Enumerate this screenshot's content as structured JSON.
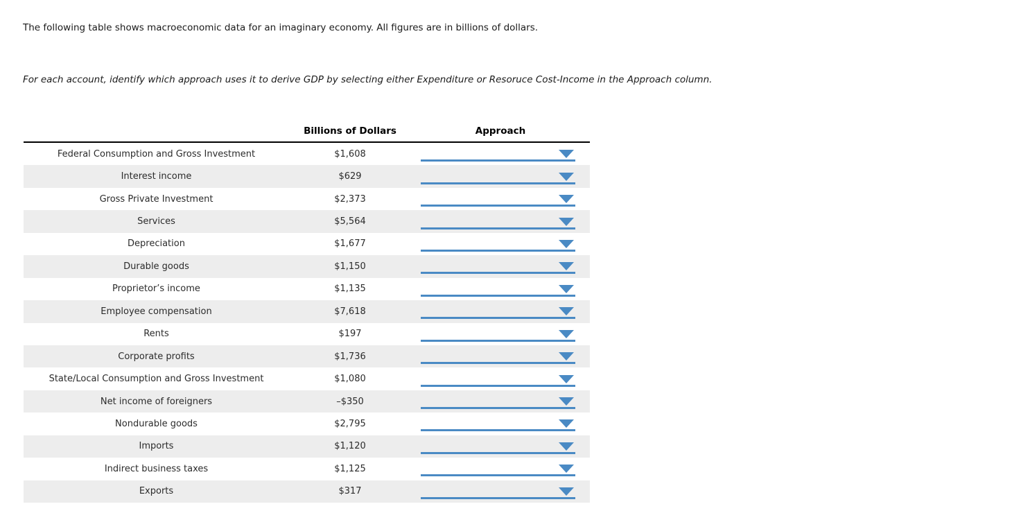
{
  "intro": "The following table shows macroeconomic data for an imaginary economy. All figures are in billions of dollars.",
  "instruction": "For each account, identify which approach uses it to derive GDP by selecting either Expenditure or Resoruce Cost-Income in the Approach column.",
  "table": {
    "headers": {
      "account": "",
      "amount": "Billions of Dollars",
      "approach": "Approach"
    },
    "dropdown": {
      "selected_value": ""
    },
    "rows": [
      {
        "label": "Federal Consumption and Gross Investment",
        "value": "$1,608"
      },
      {
        "label": "Interest income",
        "value": "$629"
      },
      {
        "label": "Gross Private Investment",
        "value": "$2,373"
      },
      {
        "label": "Services",
        "value": "$5,564"
      },
      {
        "label": "Depreciation",
        "value": "$1,677"
      },
      {
        "label": "Durable goods",
        "value": "$1,150"
      },
      {
        "label": "Proprietor’s income",
        "value": "$1,135"
      },
      {
        "label": "Employee compensation",
        "value": "$7,618"
      },
      {
        "label": "Rents",
        "value": "$197"
      },
      {
        "label": "Corporate profits",
        "value": "$1,736"
      },
      {
        "label": "State/Local Consumption and Gross Investment",
        "value": "$1,080"
      },
      {
        "label": "Net income of foreigners",
        "value": "–$350"
      },
      {
        "label": "Nondurable goods",
        "value": "$2,795"
      },
      {
        "label": "Imports",
        "value": "$1,120"
      },
      {
        "label": "Indirect business taxes",
        "value": "$1,125"
      },
      {
        "label": "Exports",
        "value": "$317"
      }
    ]
  },
  "colors": {
    "dropdown_blue": "#4a8ac4",
    "row_alt_gray": "#ededed",
    "header_underline": "#000000"
  }
}
